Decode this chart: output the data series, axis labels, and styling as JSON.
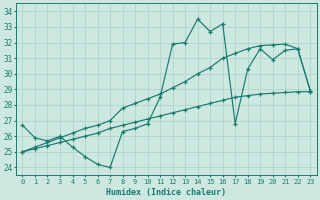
{
  "xlabel": "Humidex (Indice chaleur)",
  "xlim": [
    -0.5,
    23.5
  ],
  "ylim": [
    23.5,
    34.5
  ],
  "xticks": [
    0,
    1,
    2,
    3,
    4,
    5,
    6,
    7,
    8,
    9,
    10,
    11,
    12,
    13,
    14,
    15,
    16,
    17,
    18,
    19,
    20,
    21,
    22,
    23
  ],
  "yticks": [
    24,
    25,
    26,
    27,
    28,
    29,
    30,
    31,
    32,
    33,
    34
  ],
  "bg_color": "#cce8e0",
  "grid_color": "#b0d8ce",
  "line_color": "#1a7a6e",
  "line1_x": [
    0,
    1,
    2,
    3,
    4,
    5,
    6,
    7,
    8,
    9,
    10,
    11,
    12,
    13,
    14,
    15,
    16,
    17,
    18,
    19,
    20,
    21,
    22,
    23
  ],
  "line1_y": [
    26.7,
    25.9,
    25.7,
    26.0,
    25.3,
    24.7,
    24.2,
    24.0,
    26.3,
    26.5,
    26.8,
    28.5,
    31.9,
    32.0,
    33.5,
    32.7,
    33.2,
    26.8,
    30.3,
    31.6,
    30.9,
    31.5,
    31.6,
    28.9
  ],
  "line2_x": [
    0,
    1,
    2,
    3,
    4,
    5,
    6,
    7,
    8,
    9,
    10,
    11,
    12,
    13,
    14,
    15,
    16,
    17,
    18,
    19,
    20,
    21,
    22,
    23
  ],
  "line2_y": [
    25.0,
    25.2,
    25.4,
    25.6,
    25.8,
    26.0,
    26.2,
    26.5,
    26.7,
    26.9,
    27.1,
    27.3,
    27.5,
    27.7,
    27.9,
    28.1,
    28.3,
    28.5,
    28.6,
    28.7,
    28.75,
    28.8,
    28.85,
    28.85
  ],
  "line3_x": [
    0,
    1,
    2,
    3,
    4,
    5,
    6,
    7,
    8,
    9,
    10,
    11,
    12,
    13,
    14,
    15,
    16,
    17,
    18,
    19,
    20,
    21,
    22,
    23
  ],
  "line3_y": [
    25.0,
    25.3,
    25.6,
    25.9,
    26.2,
    26.5,
    26.7,
    27.0,
    27.8,
    28.1,
    28.4,
    28.7,
    29.1,
    29.5,
    30.0,
    30.4,
    31.0,
    31.3,
    31.6,
    31.8,
    31.85,
    31.9,
    31.6,
    28.9
  ]
}
